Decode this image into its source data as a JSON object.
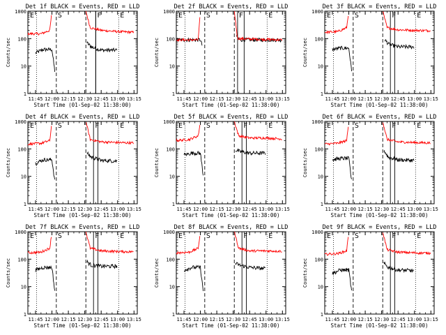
{
  "figure": {
    "shared": {
      "xlabel": "Start Time (01-Sep-02 11:38:00)",
      "ylabel": "Counts/sec",
      "x_tick_labels": [
        "11:45",
        "12:00",
        "12:15",
        "12:30",
        "12:45",
        "13:00",
        "13:15"
      ],
      "y_tick_labels": [
        "1",
        "10",
        "100",
        "1000"
      ],
      "markers": [
        "E",
        "S",
        "F",
        "E"
      ]
    }
  },
  "chart_data": [
    {
      "type": "line",
      "title": "Det 1f BLACK = Events, RED = LLD",
      "log_y": true,
      "ylim": [
        1,
        1000
      ],
      "x_range": [
        "11:38",
        "13:18"
      ],
      "series": [
        {
          "name": "Events",
          "color": "#000000",
          "key": [
            [
              "11:38",
              "gap"
            ],
            [
              "11:45",
              30
            ],
            [
              "11:52",
              40
            ],
            [
              "12:00",
              40
            ],
            [
              "12:03",
              5
            ],
            [
              "12:04",
              "gap"
            ],
            [
              "12:32",
              70
            ],
            [
              "12:36",
              50
            ],
            [
              "12:45",
              38
            ],
            [
              "13:00",
              38
            ],
            [
              "13:02",
              "gap"
            ]
          ]
        },
        {
          "name": "LLD",
          "color": "#ff0000",
          "key": [
            [
              "11:38",
              150
            ],
            [
              "11:50",
              150
            ],
            [
              "11:58",
              200
            ],
            [
              "12:00",
              1000
            ],
            [
              "12:03",
              "gap"
            ],
            [
              "12:31",
              1000
            ],
            [
              "12:35",
              250
            ],
            [
              "12:45",
              200
            ],
            [
              "13:00",
              180
            ],
            [
              "13:15",
              170
            ]
          ]
        }
      ],
      "vertical_markers": {
        "dotted": [
          "11:46",
          "13:01"
        ],
        "dashed": [
          "12:04",
          "12:31"
        ],
        "solid": [
          "12:40",
          "12:40"
        ]
      },
      "grid": false
    },
    {
      "type": "line",
      "title": "Det 2f BLACK = Events, RED = LLD",
      "log_y": true,
      "ylim": [
        1,
        1000
      ],
      "x_range": [
        "11:38",
        "13:18"
      ],
      "series": [
        {
          "name": "Events",
          "color": "#000000",
          "key": [
            [
              "11:38",
              90
            ],
            [
              "12:00",
              90
            ],
            [
              "12:02",
              50
            ],
            [
              "12:04",
              "gap"
            ],
            [
              "12:33",
              120
            ],
            [
              "12:36",
              90
            ],
            [
              "13:00",
              90
            ],
            [
              "13:15",
              90
            ]
          ]
        },
        {
          "name": "LLD",
          "color": "#ff0000",
          "key": [
            [
              "11:38",
              90
            ],
            [
              "11:58",
              90
            ],
            [
              "12:00",
              1000
            ],
            [
              "12:04",
              "gap"
            ],
            [
              "12:31",
              1000
            ],
            [
              "12:34",
              100
            ],
            [
              "13:15",
              90
            ]
          ]
        }
      ],
      "vertical_markers": {
        "dotted": [
          "11:46",
          "13:01"
        ],
        "dashed": [
          "12:04",
          "12:31"
        ],
        "solid": [
          "12:34",
          "12:40"
        ]
      },
      "grid": false
    },
    {
      "type": "line",
      "title": "Det 3f BLACK = Events, RED = LLD",
      "log_y": true,
      "ylim": [
        1,
        1000
      ],
      "x_range": [
        "11:38",
        "13:18"
      ],
      "series": [
        {
          "name": "Events",
          "color": "#000000",
          "key": [
            [
              "11:38",
              "gap"
            ],
            [
              "11:45",
              40
            ],
            [
              "11:52",
              45
            ],
            [
              "12:00",
              45
            ],
            [
              "12:03",
              5
            ],
            [
              "12:04",
              "gap"
            ],
            [
              "12:33",
              90
            ],
            [
              "12:37",
              60
            ],
            [
              "12:45",
              50
            ],
            [
              "13:00",
              50
            ],
            [
              "13:02",
              "gap"
            ]
          ]
        },
        {
          "name": "LLD",
          "color": "#ff0000",
          "key": [
            [
              "11:38",
              170
            ],
            [
              "11:50",
              180
            ],
            [
              "11:58",
              250
            ],
            [
              "12:00",
              1000
            ],
            [
              "12:03",
              "gap"
            ],
            [
              "12:31",
              1000
            ],
            [
              "12:35",
              250
            ],
            [
              "12:45",
              210
            ],
            [
              "13:00",
              200
            ],
            [
              "13:15",
              195
            ]
          ]
        }
      ],
      "vertical_markers": {
        "dotted": [
          "11:46",
          "13:01"
        ],
        "dashed": [
          "12:04",
          "12:31"
        ],
        "solid": [
          "12:38",
          "12:42"
        ]
      },
      "grid": false
    },
    {
      "type": "line",
      "title": "Det 4f BLACK = Events, RED = LLD",
      "log_y": true,
      "ylim": [
        1,
        1000
      ],
      "x_range": [
        "11:38",
        "13:18"
      ],
      "series": [
        {
          "name": "Events",
          "color": "#000000",
          "key": [
            [
              "11:38",
              "gap"
            ],
            [
              "11:45",
              30
            ],
            [
              "11:52",
              40
            ],
            [
              "12:00",
              40
            ],
            [
              "12:03",
              5
            ],
            [
              "12:04",
              "gap"
            ],
            [
              "12:32",
              70
            ],
            [
              "12:36",
              50
            ],
            [
              "12:45",
              38
            ],
            [
              "13:00",
              36
            ],
            [
              "13:02",
              "gap"
            ]
          ]
        },
        {
          "name": "LLD",
          "color": "#ff0000",
          "key": [
            [
              "11:38",
              150
            ],
            [
              "11:50",
              160
            ],
            [
              "11:58",
              200
            ],
            [
              "12:00",
              1000
            ],
            [
              "12:03",
              "gap"
            ],
            [
              "12:31",
              1000
            ],
            [
              "12:35",
              220
            ],
            [
              "12:45",
              180
            ],
            [
              "13:00",
              170
            ],
            [
              "13:15",
              165
            ]
          ]
        }
      ],
      "vertical_markers": {
        "dotted": [
          "11:46",
          "13:01"
        ],
        "dashed": [
          "12:04",
          "12:31"
        ],
        "solid": [
          "12:38",
          "12:42"
        ]
      },
      "grid": false
    },
    {
      "type": "line",
      "title": "Det 5f BLACK = Events, RED = LLD",
      "log_y": true,
      "ylim": [
        1,
        1000
      ],
      "x_range": [
        "11:38",
        "13:18"
      ],
      "series": [
        {
          "name": "Events",
          "color": "#000000",
          "key": [
            [
              "11:38",
              "gap"
            ],
            [
              "11:45",
              60
            ],
            [
              "11:52",
              70
            ],
            [
              "12:00",
              70
            ],
            [
              "12:03",
              8
            ],
            [
              "12:04",
              "gap"
            ],
            [
              "12:32",
              90
            ],
            [
              "12:36",
              80
            ],
            [
              "12:45",
              70
            ],
            [
              "13:00",
              70
            ],
            [
              "13:02",
              "gap"
            ]
          ]
        },
        {
          "name": "LLD",
          "color": "#ff0000",
          "key": [
            [
              "11:38",
              200
            ],
            [
              "11:50",
              220
            ],
            [
              "11:58",
              300
            ],
            [
              "12:00",
              1000
            ],
            [
              "12:03",
              "gap"
            ],
            [
              "12:31",
              1000
            ],
            [
              "12:35",
              300
            ],
            [
              "12:45",
              250
            ],
            [
              "13:00",
              250
            ],
            [
              "13:15",
              230
            ]
          ]
        }
      ],
      "vertical_markers": {
        "dotted": [
          "11:46",
          "13:01"
        ],
        "dashed": [
          "12:04",
          "12:31"
        ],
        "solid": [
          "12:38",
          "12:42"
        ]
      },
      "grid": false
    },
    {
      "type": "line",
      "title": "Det 6f BLACK = Events, RED = LLD",
      "log_y": true,
      "ylim": [
        1,
        1000
      ],
      "x_range": [
        "11:38",
        "13:18"
      ],
      "series": [
        {
          "name": "Events",
          "color": "#000000",
          "key": [
            [
              "11:38",
              "gap"
            ],
            [
              "11:45",
              40
            ],
            [
              "11:52",
              45
            ],
            [
              "12:00",
              45
            ],
            [
              "12:03",
              5
            ],
            [
              "12:04",
              "gap"
            ],
            [
              "12:32",
              90
            ],
            [
              "12:36",
              50
            ],
            [
              "12:45",
              40
            ],
            [
              "13:00",
              38
            ],
            [
              "13:02",
              "gap"
            ]
          ]
        },
        {
          "name": "LLD",
          "color": "#ff0000",
          "key": [
            [
              "11:38",
              150
            ],
            [
              "11:50",
              160
            ],
            [
              "11:58",
              200
            ],
            [
              "12:00",
              1000
            ],
            [
              "12:03",
              "gap"
            ],
            [
              "12:31",
              1000
            ],
            [
              "12:35",
              220
            ],
            [
              "12:45",
              180
            ],
            [
              "13:00",
              170
            ],
            [
              "13:15",
              165
            ]
          ]
        }
      ],
      "vertical_markers": {
        "dotted": [
          "11:46",
          "13:01"
        ],
        "dashed": [
          "12:04",
          "12:31"
        ],
        "solid": [
          "12:38",
          "12:42"
        ]
      },
      "grid": false
    },
    {
      "type": "line",
      "title": "Det 7f BLACK = Events, RED = LLD",
      "log_y": true,
      "ylim": [
        1,
        1000
      ],
      "x_range": [
        "11:38",
        "13:18"
      ],
      "series": [
        {
          "name": "Events",
          "color": "#000000",
          "key": [
            [
              "11:38",
              "gap"
            ],
            [
              "11:45",
              40
            ],
            [
              "11:52",
              50
            ],
            [
              "12:00",
              50
            ],
            [
              "12:03",
              5
            ],
            [
              "12:04",
              "gap"
            ],
            [
              "12:32",
              80
            ],
            [
              "12:36",
              60
            ],
            [
              "12:45",
              55
            ],
            [
              "13:00",
              55
            ],
            [
              "13:02",
              "gap"
            ]
          ]
        },
        {
          "name": "LLD",
          "color": "#ff0000",
          "key": [
            [
              "11:38",
              170
            ],
            [
              "11:50",
              180
            ],
            [
              "11:58",
              250
            ],
            [
              "12:00",
              1000
            ],
            [
              "12:03",
              "gap"
            ],
            [
              "12:31",
              1000
            ],
            [
              "12:35",
              250
            ],
            [
              "12:45",
              200
            ],
            [
              "13:00",
              190
            ],
            [
              "13:15",
              185
            ]
          ]
        }
      ],
      "vertical_markers": {
        "dotted": [
          "11:46",
          "13:01"
        ],
        "dashed": [
          "12:04",
          "12:31"
        ],
        "solid": [
          "12:38",
          "12:42"
        ]
      },
      "grid": false
    },
    {
      "type": "line",
      "title": "Det 8f BLACK = Events, RED = LLD",
      "log_y": true,
      "ylim": [
        1,
        1000
      ],
      "x_range": [
        "11:38",
        "13:18"
      ],
      "series": [
        {
          "name": "Events",
          "color": "#000000",
          "key": [
            [
              "11:38",
              "gap"
            ],
            [
              "11:45",
              40
            ],
            [
              "11:52",
              50
            ],
            [
              "12:00",
              50
            ],
            [
              "12:03",
              5
            ],
            [
              "12:04",
              "gap"
            ],
            [
              "12:32",
              70
            ],
            [
              "12:36",
              60
            ],
            [
              "12:45",
              50
            ],
            [
              "13:00",
              45
            ],
            [
              "13:02",
              "gap"
            ]
          ]
        },
        {
          "name": "LLD",
          "color": "#ff0000",
          "key": [
            [
              "11:38",
              170
            ],
            [
              "11:50",
              180
            ],
            [
              "11:58",
              250
            ],
            [
              "12:00",
              1000
            ],
            [
              "12:03",
              "gap"
            ],
            [
              "12:31",
              1000
            ],
            [
              "12:35",
              250
            ],
            [
              "12:45",
              200
            ],
            [
              "13:00",
              200
            ],
            [
              "13:15",
              195
            ]
          ]
        }
      ],
      "vertical_markers": {
        "dotted": [
          "11:46",
          "13:01"
        ],
        "dashed": [
          "12:04",
          "12:31"
        ],
        "solid": [
          "12:38",
          "12:42"
        ]
      },
      "grid": false
    },
    {
      "type": "line",
      "title": "Det 9f BLACK = Events, RED = LLD",
      "log_y": true,
      "ylim": [
        1,
        1000
      ],
      "x_range": [
        "11:38",
        "13:18"
      ],
      "series": [
        {
          "name": "Events",
          "color": "#000000",
          "key": [
            [
              "11:38",
              "gap"
            ],
            [
              "11:45",
              30
            ],
            [
              "11:52",
              40
            ],
            [
              "12:00",
              40
            ],
            [
              "12:03",
              5
            ],
            [
              "12:04",
              "gap"
            ],
            [
              "12:32",
              70
            ],
            [
              "12:36",
              50
            ],
            [
              "12:45",
              40
            ],
            [
              "13:00",
              38
            ],
            [
              "13:02",
              "gap"
            ]
          ]
        },
        {
          "name": "LLD",
          "color": "#ff0000",
          "key": [
            [
              "11:38",
              150
            ],
            [
              "11:50",
              160
            ],
            [
              "11:58",
              200
            ],
            [
              "12:00",
              1000
            ],
            [
              "12:03",
              "gap"
            ],
            [
              "12:31",
              1000
            ],
            [
              "12:35",
              220
            ],
            [
              "12:45",
              180
            ],
            [
              "13:00",
              170
            ],
            [
              "13:15",
              165
            ]
          ]
        }
      ],
      "vertical_markers": {
        "dotted": [
          "11:46",
          "13:01"
        ],
        "dashed": [
          "12:04",
          "12:31"
        ],
        "solid": [
          "12:38",
          "12:42"
        ]
      },
      "grid": false
    }
  ]
}
